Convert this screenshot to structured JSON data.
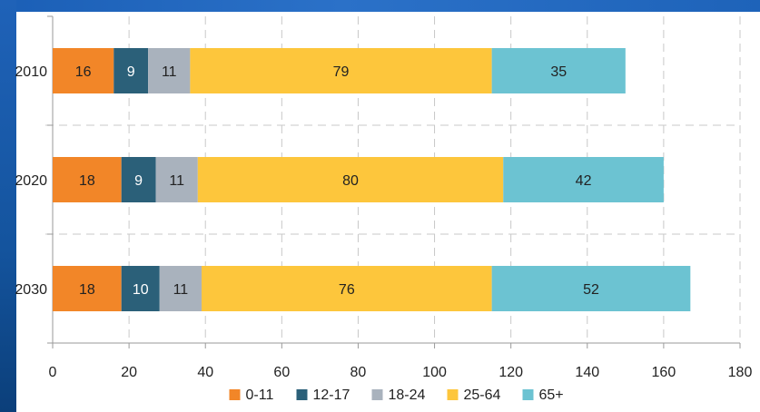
{
  "chart_data": {
    "type": "bar",
    "orientation": "horizontal",
    "stacked": true,
    "categories": [
      "2010",
      "2020",
      "2030"
    ],
    "series": [
      {
        "name": "0-11",
        "color": "#f28628",
        "label_color": "#222222",
        "values": [
          16,
          18,
          18
        ]
      },
      {
        "name": "12-17",
        "color": "#2b6079",
        "label_color": "#ffffff",
        "values": [
          9,
          9,
          10
        ]
      },
      {
        "name": "18-24",
        "color": "#a9b2bd",
        "label_color": "#222222",
        "values": [
          11,
          11,
          11
        ]
      },
      {
        "name": "25-64",
        "color": "#fdc63c",
        "label_color": "#222222",
        "values": [
          79,
          80,
          76
        ]
      },
      {
        "name": "65+",
        "color": "#6cc3d2",
        "label_color": "#222222",
        "values": [
          35,
          42,
          52
        ]
      }
    ],
    "xlim": [
      0,
      180
    ],
    "x_ticks": [
      0,
      20,
      40,
      60,
      80,
      100,
      120,
      140,
      160,
      180
    ],
    "title": "",
    "xlabel": "",
    "ylabel": "",
    "grid": "dashed vertical and horizontal",
    "legend_position": "bottom"
  }
}
